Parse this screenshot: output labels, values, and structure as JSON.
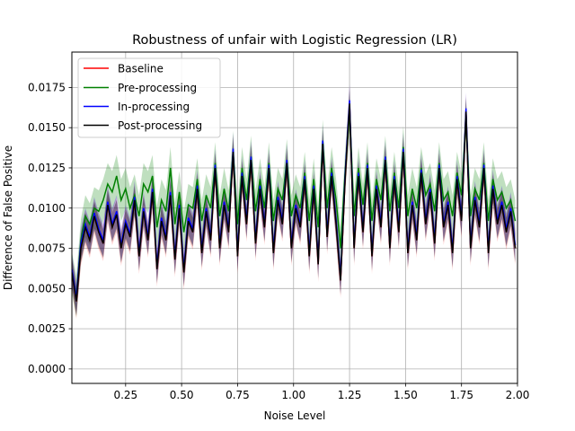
{
  "chart_data": {
    "type": "line",
    "title": "Robustness of unfair with Logistic Regression (LR)",
    "xlabel": "Noise Level",
    "ylabel": "Difference of False Positive",
    "xlim": [
      0.01,
      2.0
    ],
    "ylim": [
      -0.0009,
      0.0197
    ],
    "xticks": [
      0.25,
      0.5,
      0.75,
      1.0,
      1.25,
      1.5,
      1.75,
      2.0
    ],
    "xtick_labels": [
      "0.25",
      "0.50",
      "0.75",
      "1.00",
      "1.25",
      "1.50",
      "1.75",
      "2.00"
    ],
    "yticks": [
      0.0,
      0.0025,
      0.005,
      0.0075,
      0.01,
      0.0125,
      0.015,
      0.0175
    ],
    "ytick_labels": [
      "0.0000",
      "0.0025",
      "0.0050",
      "0.0075",
      "0.0100",
      "0.0125",
      "0.0150",
      "0.0175"
    ],
    "grid": true,
    "legend_position": "top-left",
    "series": [
      {
        "name": "Baseline",
        "color": "#ff0000",
        "band_color": "#ff0000"
      },
      {
        "name": "Pre-processing",
        "color": "#008000",
        "band_color": "#008000"
      },
      {
        "name": "In-processing",
        "color": "#0000ff",
        "band_color": "#0000ff"
      },
      {
        "name": "Post-processing",
        "color": "#000000",
        "band_color": "#000000"
      }
    ],
    "x": [
      0.01,
      0.03,
      0.05,
      0.07,
      0.09,
      0.11,
      0.13,
      0.15,
      0.17,
      0.19,
      0.21,
      0.23,
      0.25,
      0.27,
      0.29,
      0.31,
      0.33,
      0.35,
      0.37,
      0.39,
      0.41,
      0.43,
      0.45,
      0.47,
      0.49,
      0.51,
      0.53,
      0.55,
      0.57,
      0.59,
      0.61,
      0.63,
      0.65,
      0.67,
      0.69,
      0.71,
      0.73,
      0.75,
      0.77,
      0.79,
      0.81,
      0.83,
      0.85,
      0.87,
      0.89,
      0.91,
      0.93,
      0.95,
      0.97,
      0.99,
      1.01,
      1.03,
      1.05,
      1.07,
      1.09,
      1.11,
      1.13,
      1.15,
      1.17,
      1.19,
      1.21,
      1.23,
      1.25,
      1.27,
      1.29,
      1.31,
      1.33,
      1.35,
      1.37,
      1.39,
      1.41,
      1.43,
      1.45,
      1.47,
      1.49,
      1.51,
      1.53,
      1.55,
      1.57,
      1.59,
      1.61,
      1.63,
      1.65,
      1.67,
      1.69,
      1.71,
      1.73,
      1.75,
      1.77,
      1.79,
      1.81,
      1.83,
      1.85,
      1.87,
      1.89,
      1.91,
      1.93,
      1.95,
      1.97,
      1.99
    ],
    "post_processing": [
      0.006,
      0.0042,
      0.0075,
      0.0088,
      0.008,
      0.0095,
      0.0085,
      0.0078,
      0.0102,
      0.0088,
      0.0096,
      0.0075,
      0.009,
      0.0082,
      0.0105,
      0.007,
      0.0098,
      0.008,
      0.011,
      0.0062,
      0.0092,
      0.008,
      0.0108,
      0.0068,
      0.01,
      0.006,
      0.0092,
      0.0085,
      0.0112,
      0.0072,
      0.0098,
      0.008,
      0.0125,
      0.0075,
      0.0102,
      0.0085,
      0.0135,
      0.007,
      0.012,
      0.009,
      0.013,
      0.0078,
      0.0112,
      0.0088,
      0.0125,
      0.0072,
      0.0105,
      0.009,
      0.0128,
      0.0075,
      0.01,
      0.0088,
      0.0118,
      0.007,
      0.0112,
      0.0065,
      0.014,
      0.0082,
      0.012,
      0.009,
      0.0055,
      0.0118,
      0.0165,
      0.0075,
      0.012,
      0.0085,
      0.0125,
      0.007,
      0.0112,
      0.0088,
      0.013,
      0.0075,
      0.0118,
      0.0085,
      0.0135,
      0.0072,
      0.0102,
      0.008,
      0.0122,
      0.009,
      0.011,
      0.0078,
      0.0125,
      0.0088,
      0.0102,
      0.0072,
      0.0118,
      0.0092,
      0.016,
      0.0075,
      0.0105,
      0.0088,
      0.0125,
      0.0072,
      0.0112,
      0.009,
      0.0102,
      0.0085,
      0.0098,
      0.0075
    ],
    "in_processing": [
      0.0062,
      0.0044,
      0.0078,
      0.009,
      0.0082,
      0.0097,
      0.0087,
      0.008,
      0.0104,
      0.009,
      0.0098,
      0.0077,
      0.0092,
      0.0084,
      0.0107,
      0.0072,
      0.01,
      0.0082,
      0.0112,
      0.0064,
      0.0094,
      0.0082,
      0.011,
      0.007,
      0.0102,
      0.0062,
      0.0094,
      0.0087,
      0.0114,
      0.0074,
      0.01,
      0.0082,
      0.0127,
      0.0077,
      0.0104,
      0.0087,
      0.0137,
      0.0072,
      0.0122,
      0.0092,
      0.0132,
      0.008,
      0.0114,
      0.009,
      0.0127,
      0.0074,
      0.0107,
      0.0092,
      0.013,
      0.0077,
      0.0102,
      0.009,
      0.012,
      0.0072,
      0.0114,
      0.0067,
      0.0142,
      0.0084,
      0.0122,
      0.0092,
      0.0057,
      0.012,
      0.0167,
      0.0077,
      0.0122,
      0.0087,
      0.0127,
      0.0072,
      0.0114,
      0.009,
      0.0132,
      0.0077,
      0.012,
      0.0087,
      0.0137,
      0.0074,
      0.0104,
      0.0082,
      0.0124,
      0.0092,
      0.0112,
      0.008,
      0.0127,
      0.009,
      0.0104,
      0.0074,
      0.012,
      0.0094,
      0.0162,
      0.0077,
      0.0107,
      0.009,
      0.0127,
      0.0074,
      0.0114,
      0.0092,
      0.0104,
      0.0087,
      0.01,
      0.0077
    ],
    "pre_processing": [
      0.006,
      0.0045,
      0.008,
      0.0095,
      0.009,
      0.01,
      0.0098,
      0.0105,
      0.0115,
      0.011,
      0.012,
      0.0105,
      0.0112,
      0.01,
      0.0108,
      0.0095,
      0.0115,
      0.011,
      0.012,
      0.0088,
      0.0105,
      0.0098,
      0.0125,
      0.009,
      0.011,
      0.0085,
      0.0102,
      0.01,
      0.0118,
      0.0092,
      0.0108,
      0.01,
      0.0128,
      0.0095,
      0.0112,
      0.0098,
      0.0135,
      0.009,
      0.0125,
      0.0105,
      0.0132,
      0.0098,
      0.0118,
      0.01,
      0.0128,
      0.0092,
      0.0112,
      0.0105,
      0.013,
      0.0095,
      0.0108,
      0.01,
      0.0122,
      0.0092,
      0.0118,
      0.0088,
      0.0142,
      0.01,
      0.0125,
      0.0105,
      0.0075,
      0.0122,
      0.016,
      0.0095,
      0.0125,
      0.0102,
      0.0128,
      0.0092,
      0.0118,
      0.0105,
      0.0132,
      0.0098,
      0.0122,
      0.01,
      0.0138,
      0.0095,
      0.0112,
      0.01,
      0.0125,
      0.0108,
      0.0115,
      0.0098,
      0.0128,
      0.0105,
      0.011,
      0.0095,
      0.0122,
      0.0108,
      0.0155,
      0.0095,
      0.0112,
      0.0105,
      0.0128,
      0.0092,
      0.0118,
      0.0105,
      0.011,
      0.01,
      0.0105,
      0.0092
    ],
    "band_halfwidth": 0.0009
  }
}
